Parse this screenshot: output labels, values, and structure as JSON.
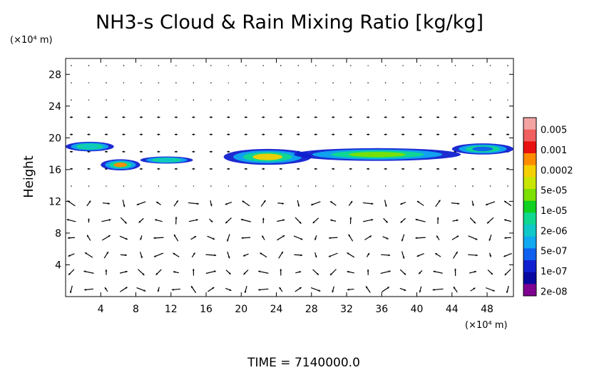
{
  "chart_data": {
    "type": "contour-vector",
    "title": "NH3-s Cloud & Rain Mixing Ratio [kg/kg]",
    "xunit": "(×10⁴ m)",
    "yunit": "(×10⁴ m)",
    "ylabel": "Height",
    "footer": "TIME = 7140000.0",
    "xlim": [
      0,
      51
    ],
    "ylim": [
      0,
      30
    ],
    "xticks": [
      "4",
      "8",
      "12",
      "16",
      "20",
      "24",
      "28",
      "32",
      "36",
      "40",
      "44",
      "48"
    ],
    "xtick_values": [
      4,
      8,
      12,
      16,
      20,
      24,
      28,
      32,
      36,
      40,
      44,
      48
    ],
    "yticks": [
      "4",
      "8",
      "12",
      "16",
      "20",
      "24",
      "28"
    ],
    "ytick_values": [
      4,
      8,
      12,
      16,
      20,
      24,
      28
    ],
    "colorbar": {
      "labels": [
        "0.005",
        "0.001",
        "0.0002",
        "5e-05",
        "1e-05",
        "2e-06",
        "5e-07",
        "1e-07",
        "2e-08"
      ],
      "colors": [
        "#f4a3a3",
        "#f06060",
        "#e81010",
        "#ff8c00",
        "#f5d000",
        "#c8e600",
        "#7ce000",
        "#10d020",
        "#10d890",
        "#10c8c8",
        "#10a8f0",
        "#1060f0",
        "#1020d0",
        "#0808a0",
        "#800090"
      ]
    },
    "cloud_blobs": [
      {
        "x": [
          0,
          5.5
        ],
        "ymid": 18.9,
        "thick": 1.2,
        "peak": "#10c8c8"
      },
      {
        "x": [
          4,
          8.5
        ],
        "ymid": 16.6,
        "thick": 1.4,
        "peak": "#ff8c00"
      },
      {
        "x": [
          8.5,
          14.5
        ],
        "ymid": 17.2,
        "thick": 0.9,
        "peak": "#10c8c8"
      },
      {
        "x": [
          18,
          28
        ],
        "ymid": 17.6,
        "thick": 2.0,
        "peak": "#f5d000"
      },
      {
        "x": [
          26,
          45
        ],
        "ymid": 17.9,
        "thick": 1.6,
        "peak": "#7ce000"
      },
      {
        "x": [
          44,
          51
        ],
        "ymid": 18.6,
        "thick": 1.4,
        "peak": "#1060f0"
      }
    ]
  }
}
